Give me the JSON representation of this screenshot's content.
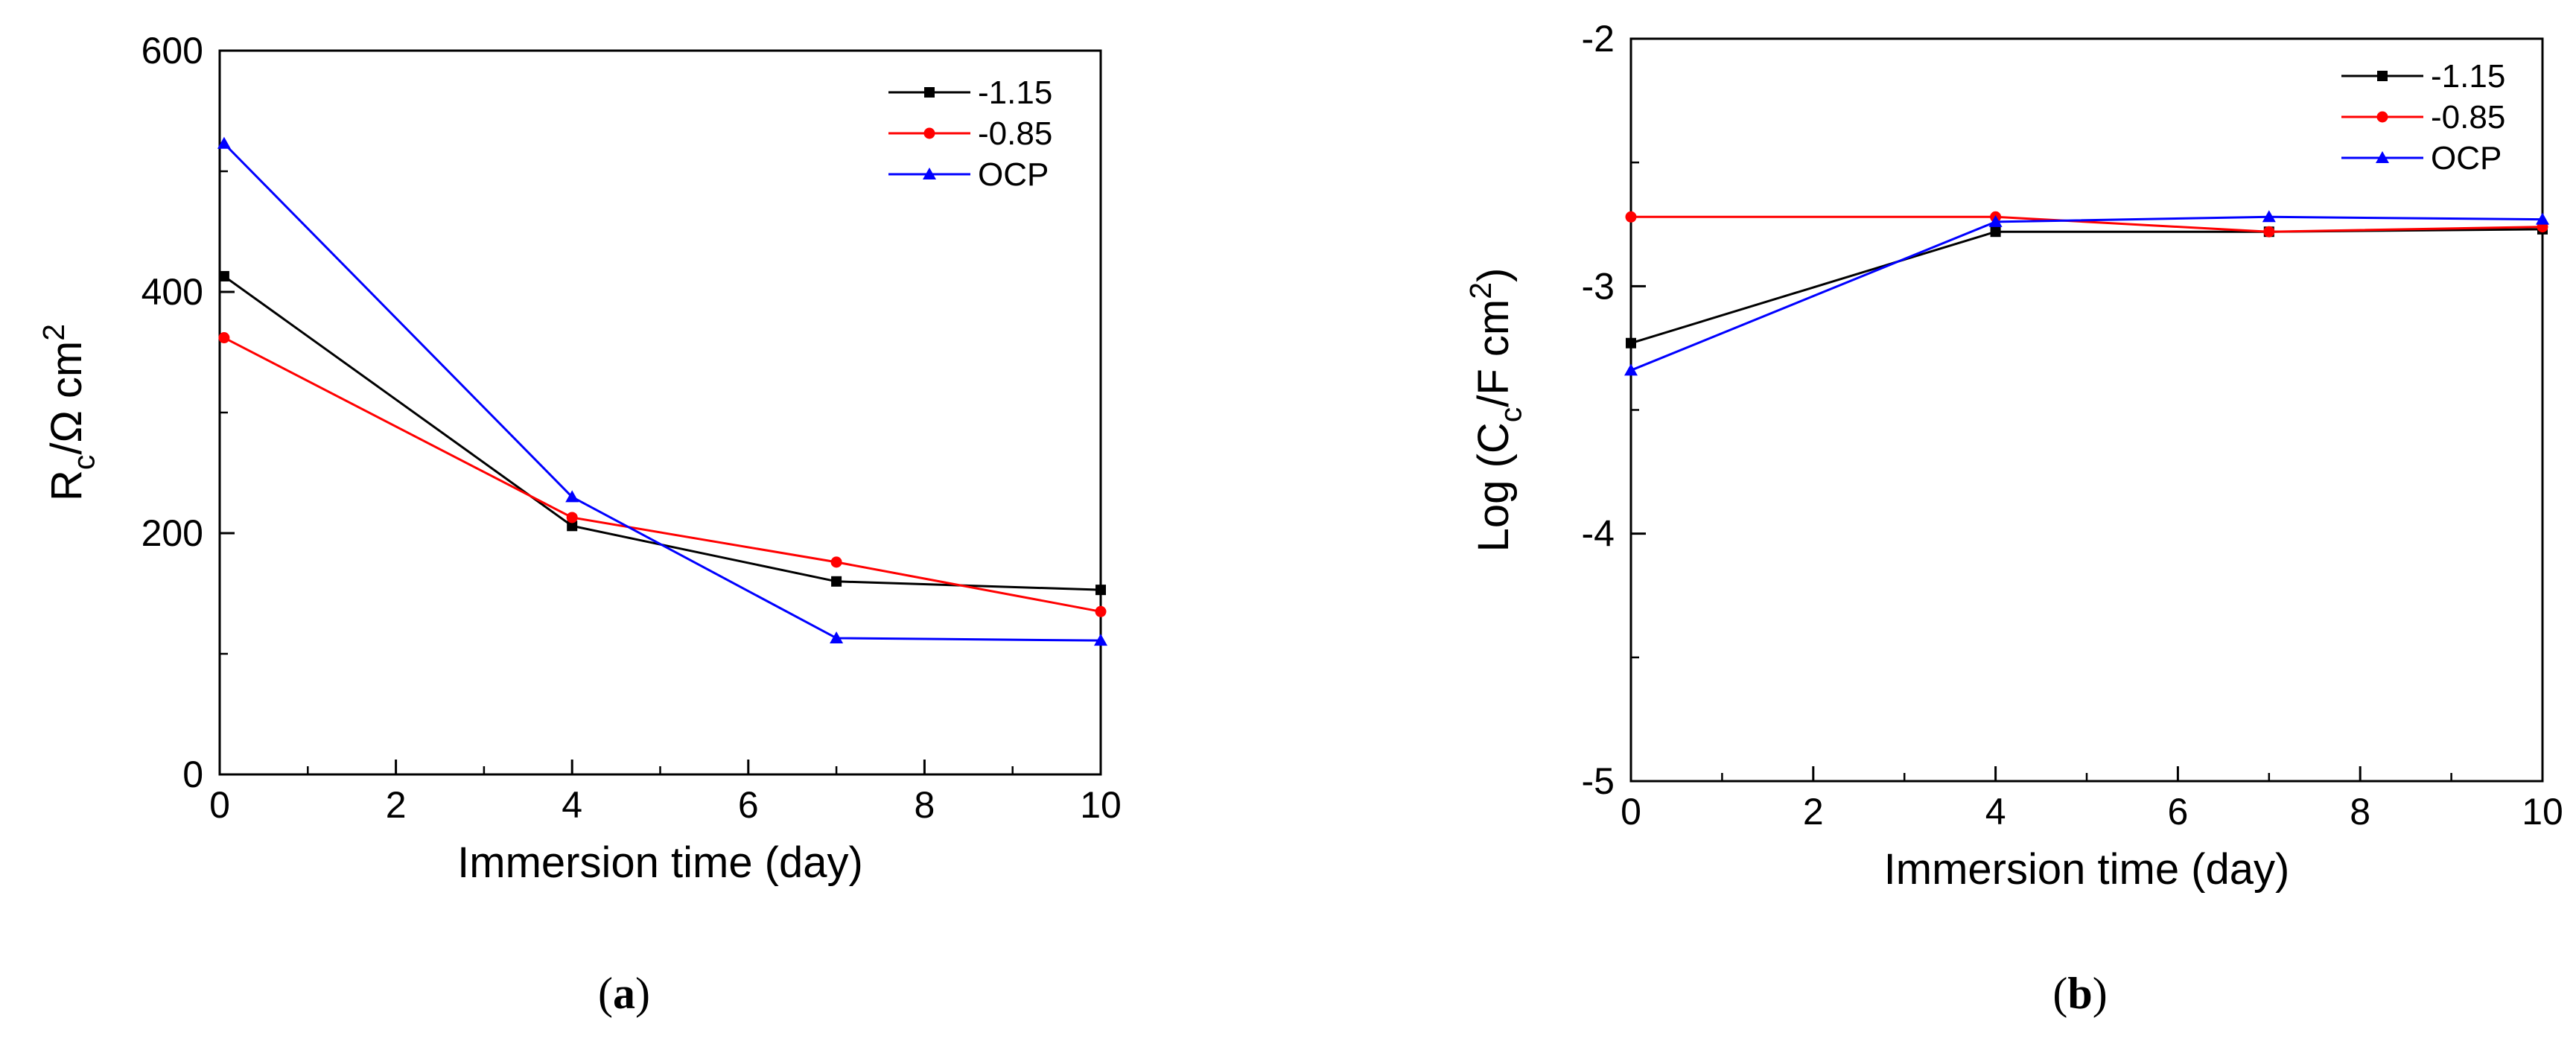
{
  "figure": {
    "panels": [
      {
        "caption_open": "(",
        "caption_letter": "a",
        "caption_close": ")"
      },
      {
        "caption_open": "(",
        "caption_letter": "b",
        "caption_close": ")"
      }
    ]
  },
  "chart_data": [
    {
      "type": "line",
      "xlabel": "Immersion time (day)",
      "ylabel": "R_c/Ω cm^2",
      "xlim": [
        0,
        10
      ],
      "ylim": [
        0,
        600
      ],
      "x_ticks": [
        0,
        2,
        4,
        6,
        8,
        10
      ],
      "x_tick_labels": [
        "0",
        "2",
        "4",
        "6",
        "8",
        "10"
      ],
      "y_ticks": [
        0,
        200,
        400,
        600
      ],
      "y_tick_labels": [
        "0",
        "200",
        "400",
        "600"
      ],
      "legend": "top-right",
      "grid": false,
      "series": [
        {
          "name": "-1.15",
          "color": "#000000",
          "marker": "square",
          "x": [
            0.05,
            4,
            7,
            10
          ],
          "y": [
            413,
            206,
            160,
            153
          ]
        },
        {
          "name": "-0.85",
          "color": "#ff0000",
          "marker": "circle",
          "x": [
            0.05,
            4,
            7,
            10
          ],
          "y": [
            362,
            213,
            176,
            135
          ]
        },
        {
          "name": "OCP",
          "color": "#0000ff",
          "marker": "triangle",
          "x": [
            0.05,
            4,
            7,
            10
          ],
          "y": [
            523,
            230,
            113,
            111
          ]
        }
      ]
    },
    {
      "type": "line",
      "xlabel": "Immersion time (day)",
      "ylabel": "Log (C_c/F cm^2)",
      "xlim": [
        0,
        10
      ],
      "ylim": [
        -5,
        -2
      ],
      "x_ticks": [
        0,
        2,
        4,
        6,
        8,
        10
      ],
      "x_tick_labels": [
        "0",
        "2",
        "4",
        "6",
        "8",
        "10"
      ],
      "y_ticks": [
        -5,
        -4,
        -3,
        -2
      ],
      "y_tick_labels": [
        "-5",
        "-4",
        "-3",
        "-2"
      ],
      "legend": "top-right",
      "grid": false,
      "series": [
        {
          "name": "-1.15",
          "color": "#000000",
          "marker": "square",
          "x": [
            0,
            4,
            7,
            10
          ],
          "y": [
            -3.23,
            -2.78,
            -2.78,
            -2.77
          ]
        },
        {
          "name": "-0.85",
          "color": "#ff0000",
          "marker": "circle",
          "x": [
            0,
            4,
            7,
            10
          ],
          "y": [
            -2.72,
            -2.72,
            -2.78,
            -2.76
          ]
        },
        {
          "name": "OCP",
          "color": "#0000ff",
          "marker": "triangle",
          "x": [
            0,
            4,
            7,
            10
          ],
          "y": [
            -3.34,
            -2.74,
            -2.72,
            -2.73
          ]
        }
      ]
    }
  ]
}
